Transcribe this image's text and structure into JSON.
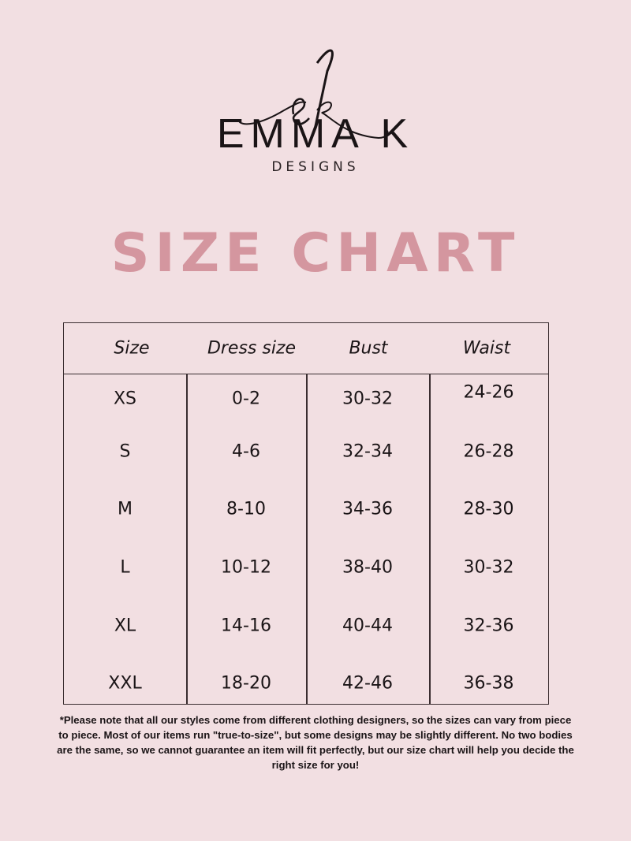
{
  "logo": {
    "monogram": "ek",
    "brand": "EMMA K",
    "subtitle": "DESIGNS"
  },
  "title": "SIZE CHART",
  "colors": {
    "background": "#f2dfe2",
    "title": "#d4969f",
    "text": "#1a1416"
  },
  "table": {
    "headers": [
      "Size",
      "Dress size",
      "Bust",
      "Waist"
    ],
    "rows": [
      [
        "XS",
        "0-2",
        "30-32",
        "24-26"
      ],
      [
        "S",
        "4-6",
        "32-34",
        "26-28"
      ],
      [
        "M",
        "8-10",
        "34-36",
        "28-30"
      ],
      [
        "L",
        "10-12",
        "38-40",
        "30-32"
      ],
      [
        "XL",
        "14-16",
        "40-44",
        "32-36"
      ],
      [
        "XXL",
        "18-20",
        "42-46",
        "36-38"
      ]
    ]
  },
  "note": "*Please note that all our styles come from different clothing designers, so the sizes can vary from piece to piece. Most of our items run \"true-to-size\", but some designs may be slightly different. No two bodies are the same, so we cannot guarantee an item will fit perfectly, but our size chart will help you decide the right size for you!"
}
